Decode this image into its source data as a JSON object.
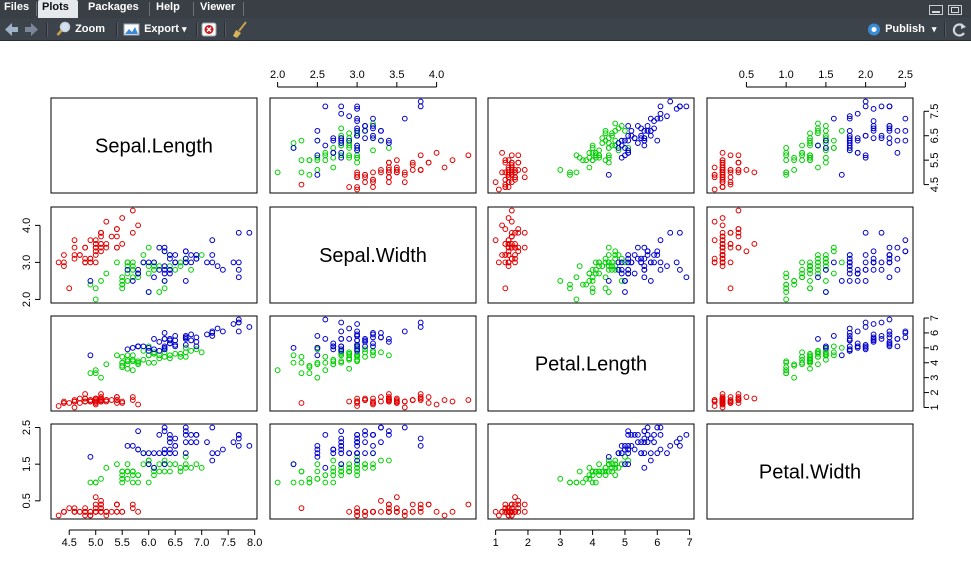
{
  "tabs": [
    {
      "label": "Files",
      "active": false
    },
    {
      "label": "Plots",
      "active": true
    },
    {
      "label": "Packages",
      "active": false
    },
    {
      "label": "Help",
      "active": false
    },
    {
      "label": "Viewer",
      "active": false
    }
  ],
  "toolbar": {
    "back_icon": "arrow-left-icon",
    "forward_icon": "arrow-right-icon",
    "zoom_icon": "magnifier-icon",
    "zoom_label": "Zoom",
    "export_icon": "image-export-icon",
    "export_label": "Export",
    "export_caret": "▾",
    "delete_icon": "delete-plot-icon",
    "clear_icon": "broom-icon",
    "publish_icon": "publish-icon",
    "publish_label": "Publish",
    "publish_caret": "▾",
    "refresh_icon": "refresh-icon"
  },
  "chart_data": {
    "type": "scatter",
    "title": "",
    "variables": [
      "Sepal.Length",
      "Sepal.Width",
      "Petal.Length",
      "Petal.Width"
    ],
    "ranges": [
      [
        4.3,
        7.9
      ],
      [
        2.0,
        4.4
      ],
      [
        1.0,
        6.9
      ],
      [
        0.1,
        2.5
      ]
    ],
    "ticks": [
      [
        "4.5",
        "5.0",
        "5.5",
        "6.0",
        "6.5",
        "7.0",
        "7.5",
        "8.0"
      ],
      [
        "2.0",
        "2.5",
        "3.0",
        "3.5",
        "4.0"
      ],
      [
        "1",
        "2",
        "3",
        "4",
        "5",
        "6",
        "7"
      ],
      [
        "0.5",
        "1.0",
        "1.5",
        "2.0",
        "2.5"
      ]
    ],
    "left_ticks": [
      [
        "2.0",
        "3.0",
        "4.0"
      ],
      [
        "0.5",
        "1.5",
        "2.5"
      ]
    ],
    "right_ticks": [
      [
        "4.5",
        "5.5",
        "6.5",
        "7.5"
      ],
      [
        "1",
        "2",
        "3",
        "4",
        "5",
        "6",
        "7"
      ]
    ],
    "grid": false,
    "legend": "none",
    "series_colors": [
      "#e00000",
      "#00d000",
      "#0000cc"
    ],
    "series": [
      {
        "color": "#e00000",
        "points": [
          [
            5.1,
            3.5,
            1.4,
            0.2
          ],
          [
            4.9,
            3.0,
            1.4,
            0.2
          ],
          [
            4.7,
            3.2,
            1.3,
            0.2
          ],
          [
            4.6,
            3.1,
            1.5,
            0.2
          ],
          [
            5.0,
            3.6,
            1.4,
            0.2
          ],
          [
            5.4,
            3.9,
            1.7,
            0.4
          ],
          [
            4.6,
            3.4,
            1.4,
            0.3
          ],
          [
            5.0,
            3.4,
            1.5,
            0.2
          ],
          [
            4.4,
            2.9,
            1.4,
            0.2
          ],
          [
            4.9,
            3.1,
            1.5,
            0.1
          ],
          [
            5.4,
            3.7,
            1.5,
            0.2
          ],
          [
            4.8,
            3.4,
            1.6,
            0.2
          ],
          [
            4.8,
            3.0,
            1.4,
            0.1
          ],
          [
            4.3,
            3.0,
            1.1,
            0.1
          ],
          [
            5.8,
            4.0,
            1.2,
            0.2
          ],
          [
            5.7,
            4.4,
            1.5,
            0.4
          ],
          [
            5.4,
            3.9,
            1.3,
            0.4
          ],
          [
            5.1,
            3.5,
            1.4,
            0.3
          ],
          [
            5.7,
            3.8,
            1.7,
            0.3
          ],
          [
            5.1,
            3.8,
            1.5,
            0.3
          ],
          [
            5.4,
            3.4,
            1.7,
            0.2
          ],
          [
            5.1,
            3.7,
            1.5,
            0.4
          ],
          [
            4.6,
            3.6,
            1.0,
            0.2
          ],
          [
            5.1,
            3.3,
            1.7,
            0.5
          ],
          [
            4.8,
            3.4,
            1.9,
            0.2
          ],
          [
            5.0,
            3.0,
            1.6,
            0.2
          ],
          [
            5.0,
            3.4,
            1.6,
            0.4
          ],
          [
            5.2,
            3.5,
            1.5,
            0.2
          ],
          [
            5.2,
            3.4,
            1.4,
            0.2
          ],
          [
            4.7,
            3.2,
            1.6,
            0.2
          ],
          [
            4.8,
            3.1,
            1.6,
            0.2
          ],
          [
            5.4,
            3.4,
            1.5,
            0.4
          ],
          [
            5.2,
            4.1,
            1.5,
            0.1
          ],
          [
            5.5,
            4.2,
            1.4,
            0.2
          ],
          [
            4.9,
            3.1,
            1.5,
            0.2
          ],
          [
            5.0,
            3.2,
            1.2,
            0.2
          ],
          [
            5.5,
            3.5,
            1.3,
            0.2
          ],
          [
            4.9,
            3.6,
            1.4,
            0.1
          ],
          [
            4.4,
            3.0,
            1.3,
            0.2
          ],
          [
            5.1,
            3.4,
            1.5,
            0.2
          ],
          [
            5.0,
            3.5,
            1.3,
            0.3
          ],
          [
            4.5,
            2.3,
            1.3,
            0.3
          ],
          [
            4.4,
            3.2,
            1.3,
            0.2
          ],
          [
            5.0,
            3.5,
            1.6,
            0.6
          ],
          [
            5.1,
            3.8,
            1.9,
            0.4
          ],
          [
            4.8,
            3.0,
            1.4,
            0.3
          ],
          [
            5.1,
            3.8,
            1.6,
            0.2
          ],
          [
            4.6,
            3.2,
            1.4,
            0.2
          ],
          [
            5.3,
            3.7,
            1.5,
            0.2
          ],
          [
            5.0,
            3.3,
            1.4,
            0.2
          ]
        ]
      },
      {
        "color": "#00d000",
        "points": [
          [
            7.0,
            3.2,
            4.7,
            1.4
          ],
          [
            6.4,
            3.2,
            4.5,
            1.5
          ],
          [
            6.9,
            3.1,
            4.9,
            1.5
          ],
          [
            5.5,
            2.3,
            4.0,
            1.3
          ],
          [
            6.5,
            2.8,
            4.6,
            1.5
          ],
          [
            5.7,
            2.8,
            4.5,
            1.3
          ],
          [
            6.3,
            3.3,
            4.7,
            1.6
          ],
          [
            4.9,
            2.4,
            3.3,
            1.0
          ],
          [
            6.6,
            2.9,
            4.6,
            1.3
          ],
          [
            5.2,
            2.7,
            3.9,
            1.4
          ],
          [
            5.0,
            2.0,
            3.5,
            1.0
          ],
          [
            5.9,
            3.0,
            4.2,
            1.5
          ],
          [
            6.0,
            2.2,
            4.0,
            1.0
          ],
          [
            6.1,
            2.9,
            4.7,
            1.4
          ],
          [
            5.6,
            2.9,
            3.6,
            1.3
          ],
          [
            6.7,
            3.1,
            4.4,
            1.4
          ],
          [
            5.6,
            3.0,
            4.5,
            1.5
          ],
          [
            5.8,
            2.7,
            4.1,
            1.0
          ],
          [
            6.2,
            2.2,
            4.5,
            1.5
          ],
          [
            5.6,
            2.5,
            3.9,
            1.1
          ],
          [
            5.9,
            3.2,
            4.8,
            1.8
          ],
          [
            6.1,
            2.8,
            4.0,
            1.3
          ],
          [
            6.3,
            2.5,
            4.9,
            1.5
          ],
          [
            6.1,
            2.8,
            4.7,
            1.2
          ],
          [
            6.4,
            2.9,
            4.3,
            1.3
          ],
          [
            6.6,
            3.0,
            4.4,
            1.4
          ],
          [
            6.8,
            2.8,
            4.8,
            1.4
          ],
          [
            6.7,
            3.0,
            5.0,
            1.7
          ],
          [
            6.0,
            2.9,
            4.5,
            1.5
          ],
          [
            5.7,
            2.6,
            3.5,
            1.0
          ],
          [
            5.5,
            2.4,
            3.8,
            1.1
          ],
          [
            5.5,
            2.4,
            3.7,
            1.0
          ],
          [
            5.8,
            2.7,
            3.9,
            1.2
          ],
          [
            6.0,
            2.7,
            5.1,
            1.6
          ],
          [
            5.4,
            3.0,
            4.5,
            1.5
          ],
          [
            6.0,
            3.4,
            4.5,
            1.6
          ],
          [
            6.7,
            3.1,
            4.7,
            1.5
          ],
          [
            6.3,
            2.3,
            4.4,
            1.3
          ],
          [
            5.6,
            3.0,
            4.1,
            1.3
          ],
          [
            5.5,
            2.5,
            4.0,
            1.3
          ],
          [
            5.5,
            2.6,
            4.4,
            1.2
          ],
          [
            6.1,
            3.0,
            4.6,
            1.4
          ],
          [
            5.8,
            2.6,
            4.0,
            1.2
          ],
          [
            5.0,
            2.3,
            3.3,
            1.0
          ],
          [
            5.6,
            2.7,
            4.2,
            1.3
          ],
          [
            5.7,
            3.0,
            4.2,
            1.2
          ],
          [
            5.7,
            2.9,
            4.2,
            1.3
          ],
          [
            6.2,
            2.9,
            4.3,
            1.3
          ],
          [
            5.1,
            2.5,
            3.0,
            1.1
          ],
          [
            5.7,
            2.8,
            4.1,
            1.3
          ]
        ]
      },
      {
        "color": "#0000cc",
        "points": [
          [
            6.3,
            3.3,
            6.0,
            2.5
          ],
          [
            5.8,
            2.7,
            5.1,
            1.9
          ],
          [
            7.1,
            3.0,
            5.9,
            2.1
          ],
          [
            6.3,
            2.9,
            5.6,
            1.8
          ],
          [
            6.5,
            3.0,
            5.8,
            2.2
          ],
          [
            7.6,
            3.0,
            6.6,
            2.1
          ],
          [
            4.9,
            2.5,
            4.5,
            1.7
          ],
          [
            7.3,
            2.9,
            6.3,
            1.8
          ],
          [
            6.7,
            2.5,
            5.8,
            1.8
          ],
          [
            7.2,
            3.6,
            6.1,
            2.5
          ],
          [
            6.5,
            3.2,
            5.1,
            2.0
          ],
          [
            6.4,
            2.7,
            5.3,
            1.9
          ],
          [
            6.8,
            3.0,
            5.5,
            2.1
          ],
          [
            5.7,
            2.5,
            5.0,
            2.0
          ],
          [
            5.8,
            2.8,
            5.1,
            2.4
          ],
          [
            6.4,
            3.2,
            5.3,
            2.3
          ],
          [
            6.5,
            3.0,
            5.5,
            1.8
          ],
          [
            7.7,
            3.8,
            6.7,
            2.2
          ],
          [
            7.7,
            2.6,
            6.9,
            2.3
          ],
          [
            6.0,
            2.2,
            5.0,
            1.5
          ],
          [
            6.9,
            3.2,
            5.7,
            2.3
          ],
          [
            5.6,
            2.8,
            4.9,
            2.0
          ],
          [
            7.7,
            2.8,
            6.7,
            2.0
          ],
          [
            6.3,
            2.7,
            4.9,
            1.8
          ],
          [
            6.7,
            3.3,
            5.7,
            2.1
          ],
          [
            7.2,
            3.2,
            6.0,
            1.8
          ],
          [
            6.2,
            2.8,
            4.8,
            1.8
          ],
          [
            6.1,
            3.0,
            4.9,
            1.8
          ],
          [
            6.4,
            2.8,
            5.6,
            2.1
          ],
          [
            7.2,
            3.0,
            5.8,
            1.6
          ],
          [
            7.4,
            2.8,
            6.1,
            1.9
          ],
          [
            7.9,
            3.8,
            6.4,
            2.0
          ],
          [
            6.4,
            2.8,
            5.6,
            2.2
          ],
          [
            6.3,
            2.8,
            5.1,
            1.5
          ],
          [
            6.1,
            2.6,
            5.6,
            1.4
          ],
          [
            7.7,
            3.0,
            6.1,
            2.3
          ],
          [
            6.3,
            3.4,
            5.6,
            2.4
          ],
          [
            6.4,
            3.1,
            5.5,
            1.8
          ],
          [
            6.0,
            3.0,
            4.8,
            1.8
          ],
          [
            6.9,
            3.1,
            5.4,
            2.1
          ],
          [
            6.7,
            3.1,
            5.6,
            2.4
          ],
          [
            6.9,
            3.1,
            5.1,
            2.3
          ],
          [
            5.8,
            2.7,
            5.1,
            1.9
          ],
          [
            6.8,
            3.2,
            5.9,
            2.3
          ],
          [
            6.7,
            3.3,
            5.7,
            2.5
          ],
          [
            6.7,
            3.0,
            5.2,
            2.3
          ],
          [
            6.3,
            2.5,
            5.0,
            1.9
          ],
          [
            6.5,
            3.0,
            5.2,
            2.0
          ],
          [
            6.2,
            3.4,
            5.4,
            2.3
          ],
          [
            5.9,
            3.0,
            5.1,
            1.8
          ]
        ]
      }
    ]
  }
}
